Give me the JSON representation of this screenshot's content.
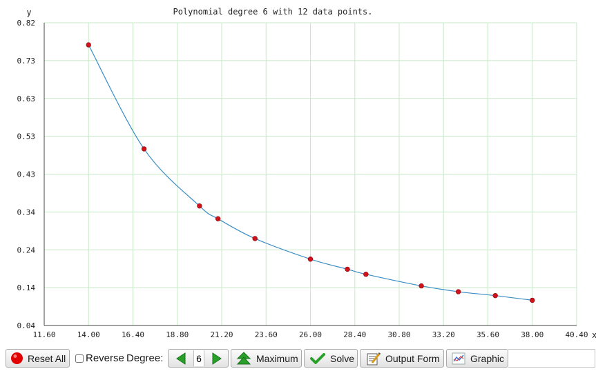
{
  "chart_data": {
    "type": "scatter",
    "title": "Polynomial degree 6 with 12 data points.",
    "xlabel": "x",
    "ylabel": "y",
    "xlim": [
      11.6,
      40.4
    ],
    "ylim": [
      0.04,
      0.82
    ],
    "x_ticks": [
      "11.60",
      "14.00",
      "16.40",
      "18.80",
      "21.20",
      "23.60",
      "26.00",
      "28.40",
      "30.80",
      "33.20",
      "35.60",
      "38.00",
      "40.40"
    ],
    "y_ticks": [
      "0.82",
      "0.73",
      "0.63",
      "0.53",
      "0.43",
      "0.34",
      "0.24",
      "0.14",
      "0.04"
    ],
    "grid": true,
    "series": [
      {
        "points": [
          {
            "x": 14.0,
            "y": 0.763
          },
          {
            "x": 17.0,
            "y": 0.495
          },
          {
            "x": 20.0,
            "y": 0.348
          },
          {
            "x": 21.0,
            "y": 0.315
          },
          {
            "x": 23.0,
            "y": 0.264
          },
          {
            "x": 26.0,
            "y": 0.211
          },
          {
            "x": 28.0,
            "y": 0.185
          },
          {
            "x": 29.0,
            "y": 0.172
          },
          {
            "x": 32.0,
            "y": 0.142
          },
          {
            "x": 34.0,
            "y": 0.127
          },
          {
            "x": 36.0,
            "y": 0.117
          },
          {
            "x": 38.0,
            "y": 0.105
          }
        ]
      }
    ],
    "colors": {
      "curve": "#3a8dc5",
      "points": "#d0121b",
      "grid": "#c8e8c8"
    }
  },
  "toolbar": {
    "reset_label": "Reset All",
    "reverse_label": "Reverse",
    "reverse_checked": false,
    "degree_label": "Degree:",
    "degree_value": "6",
    "maximum_label": "Maximum",
    "solve_label": "Solve",
    "output_label": "Output Form",
    "graphic_label": "Graphic"
  }
}
